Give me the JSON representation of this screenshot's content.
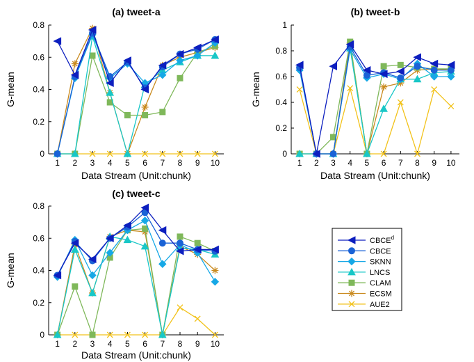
{
  "chart_data": [
    {
      "type": "line",
      "title": "(a) tweet-a",
      "xlabel": "Data Stream (Unit:chunk)",
      "ylabel": "G-mean",
      "x": [
        1,
        2,
        3,
        4,
        5,
        6,
        7,
        8,
        9,
        10
      ],
      "xlim": [
        0.5,
        10.5
      ],
      "ylim": [
        0,
        0.8
      ],
      "yticks": [
        "0",
        "0.2",
        "0.4",
        "0.6",
        "0.8"
      ],
      "series": [
        {
          "name": "CBCE",
          "values": [
            0.7,
            0.49,
            0.77,
            0.44,
            0.58,
            0.4,
            0.55,
            0.62,
            0.66,
            0.71
          ]
        },
        {
          "name": "CBCE",
          "values": [
            0.0,
            0.48,
            0.75,
            0.48,
            0.57,
            0.41,
            0.54,
            0.62,
            0.65,
            0.71
          ]
        },
        {
          "name": "SKNN",
          "values": [
            0.0,
            0.47,
            0.74,
            0.47,
            0.56,
            0.44,
            0.49,
            0.58,
            0.61,
            0.69
          ]
        },
        {
          "name": "LNCS",
          "values": [
            0.0,
            0.0,
            0.73,
            0.38,
            0.0,
            0.43,
            0.52,
            0.57,
            0.61,
            0.61
          ]
        },
        {
          "name": "CLAM",
          "values": [
            0.0,
            0.0,
            0.61,
            0.32,
            0.24,
            0.24,
            0.26,
            0.47,
            0.63,
            0.67
          ]
        },
        {
          "name": "ECSM",
          "values": [
            0.0,
            0.56,
            0.78,
            0.38,
            0.0,
            0.29,
            0.55,
            0.6,
            0.63,
            0.66
          ]
        },
        {
          "name": "AUE2",
          "values": [
            0.0,
            0.0,
            0.0,
            0.0,
            0.0,
            0.0,
            0.0,
            0.0,
            0.0,
            0.0
          ]
        }
      ]
    },
    {
      "type": "line",
      "title": "(b) tweet-b",
      "xlabel": "Data Stream (Unit:chunk)",
      "ylabel": "G-mean",
      "x": [
        1,
        2,
        3,
        4,
        5,
        6,
        7,
        8,
        9,
        10
      ],
      "xlim": [
        0.5,
        10.5
      ],
      "ylim": [
        0,
        1
      ],
      "yticks": [
        "0",
        "0.2",
        "0.4",
        "0.6",
        "0.8",
        "1"
      ],
      "series": [
        {
          "name": "CBCE",
          "values": [
            0.69,
            0.0,
            0.68,
            0.85,
            0.65,
            0.62,
            0.64,
            0.75,
            0.7,
            0.69
          ]
        },
        {
          "name": "CBCE",
          "values": [
            0.67,
            0.0,
            0.0,
            0.83,
            0.61,
            0.63,
            0.59,
            0.68,
            0.65,
            0.65
          ]
        },
        {
          "name": "SKNN",
          "values": [
            0.65,
            0.0,
            0.0,
            0.81,
            0.59,
            0.62,
            0.58,
            0.7,
            0.6,
            0.6
          ]
        },
        {
          "name": "LNCS",
          "values": [
            0.0,
            0.0,
            0.0,
            0.82,
            0.0,
            0.35,
            0.58,
            0.58,
            0.63,
            0.64
          ]
        },
        {
          "name": "CLAM",
          "values": [
            0.0,
            0.0,
            0.13,
            0.87,
            0.0,
            0.68,
            0.69,
            0.67,
            0.66,
            0.66
          ]
        },
        {
          "name": "ECSM",
          "values": [
            0.0,
            0.0,
            0.0,
            0.86,
            0.0,
            0.52,
            0.55,
            0.65,
            0.66,
            0.65
          ]
        },
        {
          "name": "AUE2",
          "values": [
            0.5,
            0.0,
            0.0,
            0.51,
            0.0,
            0.0,
            0.4,
            0.0,
            0.5,
            0.37
          ]
        }
      ]
    },
    {
      "type": "line",
      "title": "(c) tweet-c",
      "xlabel": "Data Stream (Unit:chunk)",
      "ylabel": "G-mean",
      "x": [
        1,
        2,
        3,
        4,
        5,
        6,
        7,
        8,
        9,
        10
      ],
      "xlim": [
        0.5,
        10.5
      ],
      "ylim": [
        0,
        0.8
      ],
      "yticks": [
        "0",
        "0.2",
        "0.4",
        "0.6",
        "0.8"
      ],
      "series": [
        {
          "name": "CBCE",
          "values": [
            0.37,
            0.57,
            0.47,
            0.6,
            0.68,
            0.79,
            0.65,
            0.52,
            0.53,
            0.53
          ]
        },
        {
          "name": "CBCE",
          "values": [
            0.37,
            0.58,
            0.46,
            0.6,
            0.67,
            0.76,
            0.57,
            0.57,
            0.53,
            0.52
          ]
        },
        {
          "name": "SKNN",
          "values": [
            0.36,
            0.59,
            0.37,
            0.51,
            0.65,
            0.71,
            0.44,
            0.56,
            0.51,
            0.33
          ]
        },
        {
          "name": "LNCS",
          "values": [
            0.0,
            0.53,
            0.26,
            0.61,
            0.59,
            0.55,
            0.0,
            0.54,
            0.53,
            0.5
          ]
        },
        {
          "name": "CLAM",
          "values": [
            0.0,
            0.3,
            0.0,
            0.48,
            0.65,
            0.66,
            0.0,
            0.61,
            0.57,
            0.52
          ]
        },
        {
          "name": "ECSM",
          "values": [
            0.0,
            0.56,
            0.26,
            0.61,
            0.65,
            0.64,
            0.0,
            0.55,
            0.5,
            0.4
          ]
        },
        {
          "name": "AUE2",
          "values": [
            0.0,
            0.0,
            0.0,
            0.0,
            0.0,
            0.0,
            0.0,
            0.17,
            0.1,
            0.0
          ]
        }
      ]
    }
  ],
  "legend": {
    "placement": "bottom-right",
    "entries": [
      {
        "label": "CBCE",
        "superscript": "d",
        "color": "#0d1fbf",
        "marker": "triangle-left"
      },
      {
        "label": "CBCE",
        "superscript": "",
        "color": "#1a63d6",
        "marker": "circle"
      },
      {
        "label": "SKNN",
        "superscript": "",
        "color": "#16a8e6",
        "marker": "diamond"
      },
      {
        "label": "LNCS",
        "superscript": "",
        "color": "#18c7c7",
        "marker": "triangle-up"
      },
      {
        "label": "CLAM",
        "superscript": "",
        "color": "#7fb85a",
        "marker": "square"
      },
      {
        "label": "ECSM",
        "superscript": "",
        "color": "#c98a1e",
        "marker": "asterisk"
      },
      {
        "label": "AUE2",
        "superscript": "",
        "color": "#f2c21a",
        "marker": "x"
      }
    ]
  }
}
